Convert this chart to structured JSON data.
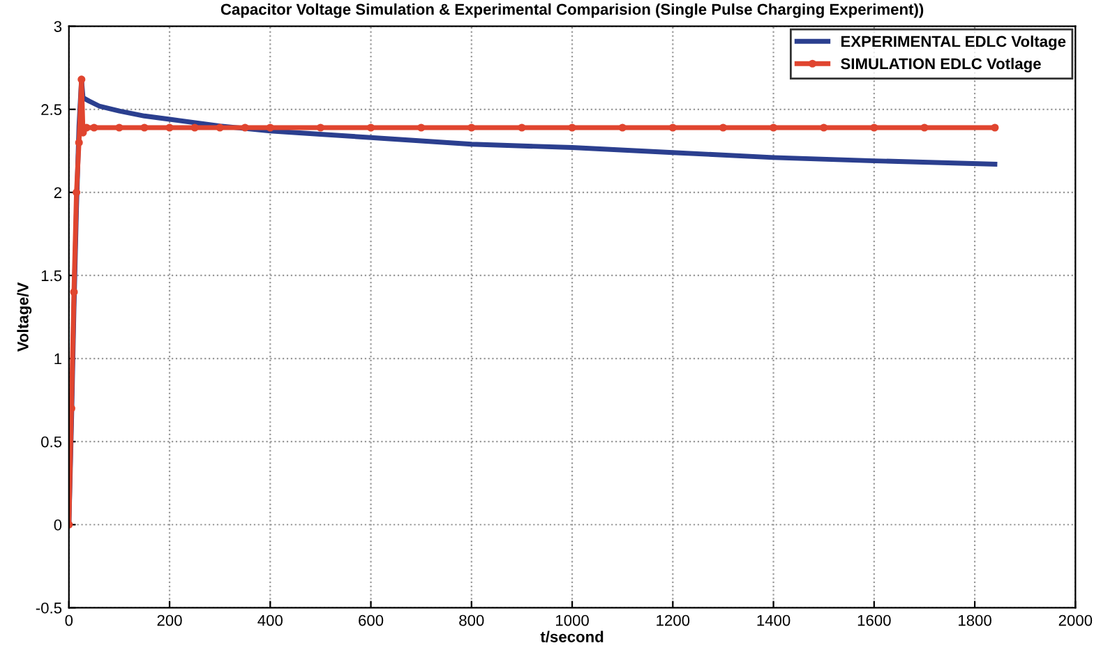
{
  "chart_data": {
    "type": "line",
    "title": "Capacitor Voltage Simulation & Experimental Comparision (Single Pulse Charging Experiment))",
    "xlabel": "t/second",
    "ylabel": "Voltage/V",
    "xlim": [
      0,
      2000
    ],
    "xticks": [
      0,
      200,
      400,
      600,
      800,
      1000,
      1200,
      1400,
      1600,
      1800,
      2000
    ],
    "ylim": [
      -0.5,
      3
    ],
    "yticks": [
      -0.5,
      0,
      0.5,
      1,
      1.5,
      2,
      2.5,
      3
    ],
    "grid": true,
    "legend": "top right",
    "series": [
      {
        "name": "EXPERIMENTAL EDLC Voltage",
        "color": "#2b3f8f",
        "marker": "none",
        "x": [
          0,
          5,
          10,
          15,
          20,
          25,
          28,
          40,
          60,
          100,
          150,
          200,
          300,
          400,
          500,
          600,
          800,
          1000,
          1200,
          1400,
          1600,
          1840
        ],
        "values": [
          0,
          0.6,
          1.3,
          1.9,
          2.4,
          2.68,
          2.57,
          2.55,
          2.52,
          2.49,
          2.46,
          2.44,
          2.4,
          2.37,
          2.35,
          2.33,
          2.29,
          2.27,
          2.24,
          2.21,
          2.19,
          2.17
        ]
      },
      {
        "name": "SIMULATION EDLC Votlage",
        "color": "#e0452f",
        "marker": "circle",
        "x": [
          0,
          5,
          10,
          15,
          20,
          25,
          28,
          35,
          50,
          100,
          150,
          200,
          250,
          300,
          350,
          400,
          500,
          600,
          700,
          800,
          900,
          1000,
          1100,
          1200,
          1300,
          1400,
          1500,
          1600,
          1700,
          1840
        ],
        "values": [
          0,
          0.7,
          1.4,
          2.0,
          2.3,
          2.68,
          2.36,
          2.39,
          2.39,
          2.39,
          2.39,
          2.39,
          2.39,
          2.39,
          2.39,
          2.39,
          2.39,
          2.39,
          2.39,
          2.39,
          2.39,
          2.39,
          2.39,
          2.39,
          2.39,
          2.39,
          2.39,
          2.39,
          2.39,
          2.39
        ]
      }
    ]
  }
}
